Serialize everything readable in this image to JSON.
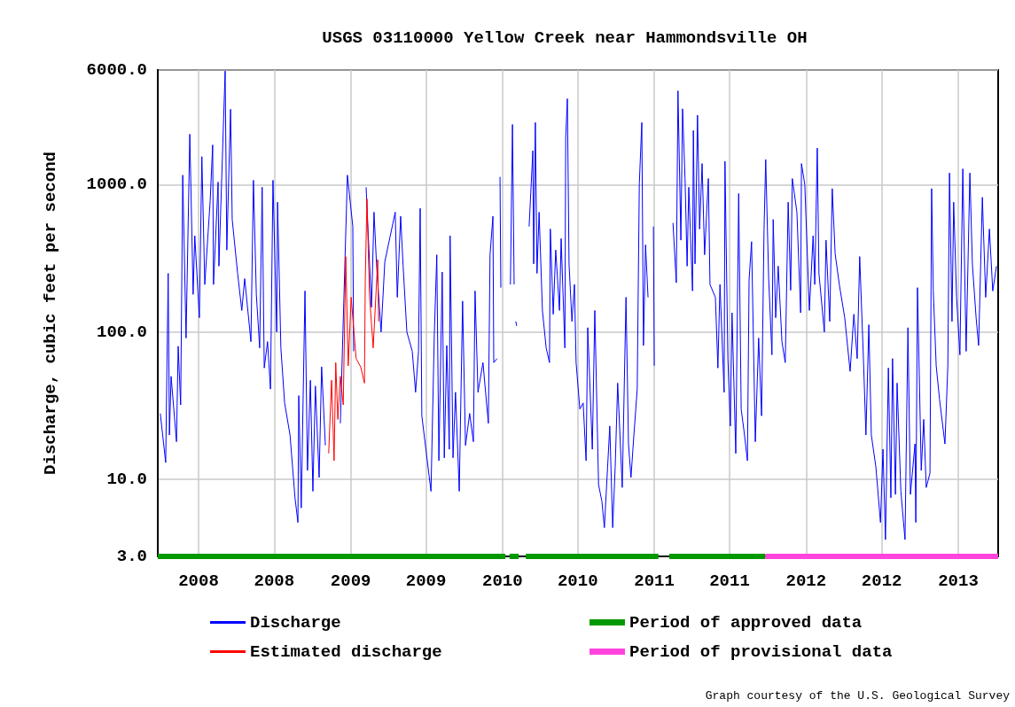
{
  "chart_data": {
    "type": "line",
    "title": "USGS 03110000 Yellow Creek near Hammondsville OH",
    "ylabel": "Discharge, cubic feet per second",
    "xlim": [
      "2007-09-25",
      "2013-04-07"
    ],
    "xticks": [
      {
        "value": "2008-01-01",
        "label": "2008"
      },
      {
        "value": "2008-07-01",
        "label": "2008"
      },
      {
        "value": "2009-01-01",
        "label": "2009"
      },
      {
        "value": "2009-07-01",
        "label": "2009"
      },
      {
        "value": "2010-01-01",
        "label": "2010"
      },
      {
        "value": "2010-07-01",
        "label": "2010"
      },
      {
        "value": "2011-01-01",
        "label": "2011"
      },
      {
        "value": "2011-07-01",
        "label": "2011"
      },
      {
        "value": "2012-01-01",
        "label": "2012"
      },
      {
        "value": "2012-07-01",
        "label": "2012"
      },
      {
        "value": "2013-01-01",
        "label": "2013"
      }
    ],
    "ylim": [
      3,
      6000
    ],
    "yticks": [
      {
        "value": 3,
        "label": "3.0"
      },
      {
        "value": 10,
        "label": "10.0"
      },
      {
        "value": 100,
        "label": "100.0"
      },
      {
        "value": 1000,
        "label": "1000.0"
      },
      {
        "value": 6000,
        "label": "6000.0"
      }
    ],
    "log": "y",
    "grid": true,
    "legend": "bottom",
    "marker": "none",
    "annotations": [
      "Graph courtesy of the U.S. Geological Survey"
    ],
    "series": [
      {
        "name": "Discharge",
        "color": "#0000ff",
        "x": [
          "2007-10-01",
          "2007-10-14",
          "2007-10-20",
          "2007-10-23",
          "2007-10-27",
          "2007-11-09",
          "2007-11-13",
          "2007-11-19",
          "2007-11-24",
          "2007-12-02",
          "2007-12-11",
          "2007-12-19",
          "2007-12-23",
          "2008-01-03",
          "2008-01-09",
          "2008-01-16",
          "2008-01-29",
          "2008-02-04",
          "2008-02-06",
          "2008-02-17",
          "2008-02-19",
          "2008-03-05",
          "2008-03-09",
          "2008-03-18",
          "2008-03-22",
          "2008-04-04",
          "2008-04-14",
          "2008-04-21",
          "2008-05-06",
          "2008-05-12",
          "2008-05-19",
          "2008-05-27",
          "2008-06-02",
          "2008-06-07",
          "2008-06-15",
          "2008-06-22",
          "2008-06-28",
          "2008-07-07",
          "2008-07-09",
          "2008-07-17",
          "2008-07-26",
          "2008-08-08",
          "2008-08-20",
          "2008-08-27",
          "2008-08-29",
          "2008-09-04",
          "2008-09-13",
          "2008-09-19",
          "2008-09-26",
          "2008-10-02",
          "2008-10-08",
          "2008-10-17",
          "2008-10-23",
          "2008-11-01",
          "2008-11-20",
          "2008-12-07",
          "2008-12-24",
          "2009-01-06",
          "2009-01-08",
          "2009-01-25",
          "2009-02-07",
          "2009-02-20",
          "2009-02-26",
          "2009-03-04",
          "2009-03-15",
          "2009-03-24",
          "2009-04-18",
          "2009-04-23",
          "2009-05-01",
          "2009-05-07",
          "2009-05-16",
          "2009-05-29",
          "2009-06-06",
          "2009-06-13",
          "2009-06-17",
          "2009-06-21",
          "2009-07-13",
          "2009-07-21",
          "2009-07-27",
          "2009-08-01",
          "2009-08-09",
          "2009-08-14",
          "2009-08-20",
          "2009-08-26",
          "2009-08-28",
          "2009-09-04",
          "2009-09-10",
          "2009-09-19",
          "2009-09-27",
          "2009-10-04",
          "2009-10-14",
          "2009-10-23",
          "2009-10-27",
          "2009-11-03",
          "2009-11-15",
          "2009-11-28",
          "2009-12-02",
          "2009-12-09",
          "2009-12-11",
          "2009-12-19",
          "2009-12-22",
          "2009-12-26",
          "2009-12-28",
          "2010-01-10",
          "2010-01-20",
          "2010-01-25",
          "2010-01-29",
          "2010-01-31",
          "2010-02-02",
          "2010-02-04",
          "2010-02-20",
          "2010-03-06",
          "2010-03-15",
          "2010-03-17",
          "2010-03-21",
          "2010-03-25",
          "2010-03-30",
          "2010-04-07",
          "2010-04-16",
          "2010-04-24",
          "2010-04-26",
          "2010-05-03",
          "2010-05-09",
          "2010-05-18",
          "2010-05-22",
          "2010-05-31",
          "2010-06-02",
          "2010-06-06",
          "2010-06-10",
          "2010-06-17",
          "2010-06-23",
          "2010-06-27",
          "2010-07-06",
          "2010-07-14",
          "2010-07-21",
          "2010-07-25",
          "2010-08-05",
          "2010-08-11",
          "2010-08-20",
          "2010-08-28",
          "2010-09-03",
          "2010-09-16",
          "2010-09-23",
          "2010-09-29",
          "2010-10-05",
          "2010-10-16",
          "2010-10-25",
          "2010-10-31",
          "2010-11-06",
          "2010-11-13",
          "2010-11-21",
          "2010-11-26",
          "2010-12-02",
          "2010-12-06",
          "2010-12-11",
          "2010-12-17",
          "2010-12-24",
          "2010-12-30",
          "2011-01-01",
          "2011-01-20",
          "2011-02-15",
          "2011-02-23",
          "2011-02-27",
          "2011-03-06",
          "2011-03-10",
          "2011-03-16",
          "2011-03-21",
          "2011-03-25",
          "2011-04-03",
          "2011-04-05",
          "2011-04-09",
          "2011-04-15",
          "2011-04-20",
          "2011-04-26",
          "2011-05-02",
          "2011-05-11",
          "2011-05-15",
          "2011-05-28",
          "2011-06-03",
          "2011-06-08",
          "2011-06-18",
          "2011-06-20",
          "2011-06-27",
          "2011-07-03",
          "2011-07-07",
          "2011-07-16",
          "2011-07-23",
          "2011-07-29",
          "2011-08-06",
          "2011-08-13",
          "2011-08-17",
          "2011-08-23",
          "2011-09-01",
          "2011-09-09",
          "2011-09-16",
          "2011-09-22",
          "2011-09-26",
          "2011-10-03",
          "2011-10-11",
          "2011-10-14",
          "2011-10-20",
          "2011-10-26",
          "2011-11-04",
          "2011-11-12",
          "2011-11-19",
          "2011-11-25",
          "2011-11-29",
          "2011-12-10",
          "2011-12-19",
          "2011-12-21",
          "2011-12-29",
          "2012-01-09",
          "2012-01-18",
          "2012-01-22",
          "2012-01-28",
          "2012-02-01",
          "2012-02-14",
          "2012-02-18",
          "2012-02-27",
          "2012-03-04",
          "2012-03-11",
          "2012-03-21",
          "2012-04-03",
          "2012-04-16",
          "2012-04-25",
          "2012-05-03",
          "2012-05-09",
          "2012-05-18",
          "2012-05-24",
          "2012-05-31",
          "2012-06-06",
          "2012-06-17",
          "2012-06-28",
          "2012-07-04",
          "2012-07-10",
          "2012-07-17",
          "2012-07-23",
          "2012-07-27",
          "2012-08-03",
          "2012-08-07",
          "2012-08-16",
          "2012-08-26",
          "2012-09-02",
          "2012-09-08",
          "2012-09-19",
          "2012-09-21",
          "2012-09-25",
          "2012-10-04",
          "2012-10-10",
          "2012-10-16",
          "2012-10-25",
          "2012-10-29",
          "2012-11-02",
          "2012-11-09",
          "2012-11-17",
          "2012-11-30",
          "2012-12-07",
          "2012-12-11",
          "2012-12-17",
          "2012-12-21",
          "2012-12-28",
          "2013-01-05",
          "2013-01-12",
          "2013-01-20",
          "2013-01-29",
          "2013-02-04",
          "2013-02-13",
          "2013-02-19",
          "2013-02-28",
          "2013-03-08",
          "2013-03-17",
          "2013-03-25",
          "2013-04-03"
        ],
        "values": [
          28,
          13,
          250,
          20,
          50,
          18,
          80,
          32,
          1160,
          91,
          2200,
          180,
          450,
          125,
          1550,
          210,
          780,
          1860,
          210,
          1040,
          280,
          5900,
          360,
          3250,
          580,
          250,
          140,
          230,
          86,
          1070,
          180,
          78,
          960,
          57,
          86,
          41,
          1070,
          100,
          760,
          78,
          33,
          20,
          7.5,
          5.1,
          37,
          6.4,
          190,
          11.5,
          47,
          8.3,
          43,
          10.3,
          58,
          17,
          null,
          24,
          1160,
          520,
          74,
          null,
          960,
          147,
          650,
          290,
          100,
          300,
          650,
          172,
          610,
          280,
          100,
          74,
          39,
          74,
          690,
          27,
          8.3,
          96,
          334,
          13.4,
          255,
          14,
          81,
          16,
          450,
          14,
          39,
          8.3,
          162,
          17,
          28,
          18,
          190,
          39,
          62,
          24,
          334,
          610,
          62,
          66,
          null,
          1130,
          200,
          null,
          210,
          2560,
          210,
          null,
          118,
          110,
          null,
          520,
          1700,
          290,
          2640,
          250,
          650,
          140,
          78,
          62,
          500,
          132,
          360,
          140,
          430,
          78,
          2070,
          3830,
          290,
          118,
          210,
          62,
          30,
          33,
          13.4,
          107,
          16,
          140,
          9.2,
          7.1,
          4.7,
          23,
          4.7,
          12.1,
          45,
          8.8,
          172,
          17.4,
          10.3,
          20,
          41,
          1010,
          2640,
          81,
          390,
          172,
          null,
          520,
          59,
          null,
          550,
          216,
          4330,
          420,
          3270,
          1100,
          280,
          960,
          190,
          2330,
          290,
          2960,
          500,
          1390,
          334,
          1100,
          210,
          172,
          57,
          210,
          39,
          1440,
          66,
          23,
          135,
          15,
          870,
          30,
          20,
          13.4,
          225,
          410,
          18,
          91,
          27,
          500,
          1480,
          235,
          70,
          580,
          125,
          280,
          86,
          62,
          760,
          192,
          1100,
          650,
          135,
          1390,
          1000,
          140,
          450,
          210,
          1770,
          250,
          100,
          420,
          118,
          940,
          340,
          210,
          125,
          54,
          132,
          66,
          325,
          66,
          20,
          112,
          20,
          12.1,
          5.1,
          16,
          3.9,
          57,
          7.5,
          66,
          7.9,
          45,
          8.3,
          3.9,
          107,
          7.9,
          17.4,
          5.1,
          200,
          11.5,
          25.5,
          8.8,
          11,
          940,
          190,
          59,
          35,
          17.4,
          59,
          1200,
          118,
          760,
          172,
          70,
          1280,
          74,
          1200,
          290,
          125,
          81,
          820,
          172,
          500,
          190,
          280
        ]
      },
      {
        "name": "Estimated discharge",
        "color": "#ff0000",
        "x": [
          "2008-11-09",
          "2008-11-16",
          "2008-11-22",
          "2008-11-26",
          "2008-12-01",
          "2008-12-07",
          "2008-12-14",
          "2008-12-20",
          "2008-12-26",
          "2009-01-02",
          "2009-01-14",
          "2009-01-25",
          "2009-02-03",
          "2009-02-05",
          "2009-02-09",
          "2009-02-15",
          "2009-02-24",
          "2009-03-07",
          "2009-03-09"
        ],
        "values": [
          15,
          47,
          13.4,
          62,
          25.5,
          50,
          32,
          325,
          59,
          172,
          66,
          58,
          45,
          225,
          800,
          180,
          78,
          310,
          118
        ]
      },
      {
        "name": "Period of approved data",
        "color": "#009900",
        "x": [
          "2007-09-25",
          "2010-01-08",
          "2010-01-13",
          "2010-01-18",
          "2010-02-09",
          "2010-02-17",
          "2010-02-26",
          "2011-01-11",
          "2011-01-25",
          "2011-02-06",
          "2011-09-25"
        ],
        "values": [
          3,
          3,
          null,
          3,
          3,
          null,
          3,
          3,
          null,
          3,
          3
        ]
      },
      {
        "name": "Period of provisional data",
        "color": "#ff44dd",
        "x": [
          "2011-09-25",
          "2013-04-07"
        ],
        "values": [
          3,
          3
        ]
      }
    ]
  }
}
